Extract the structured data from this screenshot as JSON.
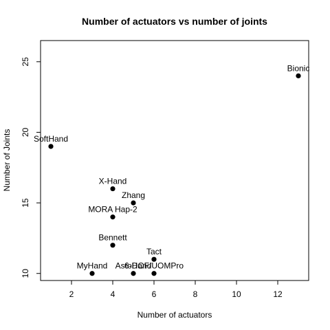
{
  "chart_data": {
    "type": "scatter",
    "title": "Number of actuators vs number of joints",
    "xlabel": "Number of actuators",
    "ylabel": "Number of Joints",
    "xlim": [
      0.5,
      13.5
    ],
    "ylim": [
      9.5,
      26.5
    ],
    "xticks": [
      2,
      4,
      6,
      8,
      10,
      12
    ],
    "yticks": [
      10,
      15,
      20,
      25
    ],
    "grid": false,
    "points": [
      {
        "label": "Bionic",
        "x": 13,
        "y": 24
      },
      {
        "label": "SoftHand",
        "x": 1,
        "y": 19
      },
      {
        "label": "X-Hand",
        "x": 4,
        "y": 16
      },
      {
        "label": "Zhang",
        "x": 5,
        "y": 15
      },
      {
        "label": "MORA Hap-2",
        "x": 4,
        "y": 14
      },
      {
        "label": "Bennett",
        "x": 4,
        "y": 12
      },
      {
        "label": "Tact",
        "x": 6,
        "y": 11
      },
      {
        "label": "MyHand",
        "x": 3,
        "y": 10
      },
      {
        "label": "AstoHand",
        "x": 5,
        "y": 10
      },
      {
        "label": "6-DOF/UOMPro",
        "x": 6,
        "y": 10
      }
    ]
  }
}
